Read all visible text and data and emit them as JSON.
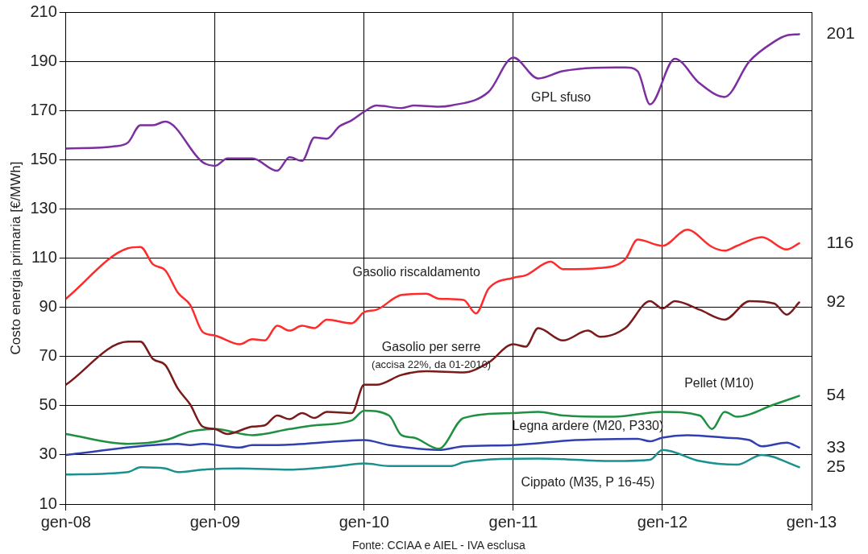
{
  "chart_data": {
    "type": "line",
    "ylabel": "Costo energia primaria [€/MWh]",
    "xlim": [
      "2008-01",
      "2013-01"
    ],
    "xticks": [
      {
        "value": "2008-01",
        "label": "gen-08"
      },
      {
        "value": "2009-01",
        "label": "gen-09"
      },
      {
        "value": "2010-01",
        "label": "gen-10"
      },
      {
        "value": "2011-01",
        "label": "gen-11"
      },
      {
        "value": "2012-01",
        "label": "gen-12"
      },
      {
        "value": "2013-01",
        "label": "gen-13"
      }
    ],
    "ylim": [
      10,
      210
    ],
    "yticks": [
      10,
      30,
      50,
      70,
      90,
      110,
      130,
      150,
      170,
      190,
      210
    ],
    "grid": true,
    "line_style": "solid",
    "marker": "none",
    "series": [
      {
        "name": "GPL sfuso",
        "color": "#7b2fa0",
        "x": [
          "2008-01",
          "2008-05",
          "2008-06",
          "2008-07",
          "2008-08",
          "2008-09",
          "2008-12",
          "2009-01",
          "2009-02",
          "2009-04",
          "2009-06",
          "2009-07",
          "2009-08",
          "2009-09",
          "2009-10",
          "2009-11",
          "2009-12",
          "2010-01",
          "2010-02",
          "2010-04",
          "2010-05",
          "2010-07",
          "2010-08",
          "2010-11",
          "2011-01",
          "2011-03",
          "2011-05",
          "2011-10",
          "2011-11",
          "2011-12",
          "2012-02",
          "2012-04",
          "2012-06",
          "2012-08",
          "2012-10",
          "2012-11",
          "2012-12"
        ],
        "values": [
          154.5,
          155.5,
          157,
          164,
          164,
          165.5,
          149,
          147.5,
          150.5,
          150.5,
          145.5,
          151,
          149.5,
          159,
          158.5,
          163.5,
          166,
          169.5,
          172,
          171,
          172,
          171.5,
          172,
          177.5,
          191.5,
          183,
          186,
          187.5,
          186,
          172.5,
          191,
          181,
          175.5,
          190,
          198,
          200.5,
          201
        ],
        "value_labels": [
          null,
          null,
          null,
          null,
          null,
          null,
          null,
          null,
          null,
          null,
          null,
          null,
          null,
          null,
          null,
          null,
          null,
          null,
          null,
          null,
          null,
          null,
          null,
          null,
          null,
          null,
          null,
          null,
          null,
          null,
          null,
          null,
          null,
          null,
          null,
          null,
          "201"
        ]
      },
      {
        "name": "Gasolio riscaldamento",
        "color": "#ff2a2a",
        "x": [
          "2008-01",
          "2008-06",
          "2008-07",
          "2008-08",
          "2008-09",
          "2008-10",
          "2008-11",
          "2008-12",
          "2009-01",
          "2009-03",
          "2009-04",
          "2009-05",
          "2009-06",
          "2009-07",
          "2009-08",
          "2009-09",
          "2009-10",
          "2009-12",
          "2010-01",
          "2010-02",
          "2010-04",
          "2010-06",
          "2010-07",
          "2010-09",
          "2010-10",
          "2010-11",
          "2011-01",
          "2011-02",
          "2011-04",
          "2011-05",
          "2011-08",
          "2011-10",
          "2011-11",
          "2012-01",
          "2012-03",
          "2012-05",
          "2012-06",
          "2012-07",
          "2012-09",
          "2012-11",
          "2012-12"
        ],
        "values": [
          93.5,
          114,
          114.5,
          107.5,
          105,
          96,
          91,
          80,
          78.5,
          75,
          77,
          76.5,
          82.5,
          80.5,
          82.5,
          81.5,
          85,
          83.5,
          88,
          89,
          95,
          95.5,
          93.5,
          93,
          87.5,
          97.5,
          102,
          103,
          108.5,
          105.5,
          106,
          109.5,
          117.5,
          115,
          121.5,
          114.5,
          113,
          115,
          118.5,
          113.5,
          116
        ],
        "value_labels": [
          null,
          null,
          null,
          null,
          null,
          null,
          null,
          null,
          null,
          null,
          null,
          null,
          null,
          null,
          null,
          null,
          null,
          null,
          null,
          null,
          null,
          null,
          null,
          null,
          null,
          null,
          null,
          null,
          null,
          null,
          null,
          null,
          null,
          null,
          null,
          null,
          null,
          null,
          null,
          null,
          "116"
        ]
      },
      {
        "name": "Gasolio per serre",
        "color": "#7a1a1a",
        "x": [
          "2008-01",
          "2008-06",
          "2008-07",
          "2008-08",
          "2008-09",
          "2008-10",
          "2008-11",
          "2008-12",
          "2009-01",
          "2009-02",
          "2009-04",
          "2009-05",
          "2009-06",
          "2009-07",
          "2009-08",
          "2009-09",
          "2009-10",
          "2009-12",
          "2010-01",
          "2010-02",
          "2010-04",
          "2010-06",
          "2010-09",
          "2010-11",
          "2011-01",
          "2011-02",
          "2011-03",
          "2011-05",
          "2011-07",
          "2011-08",
          "2011-10",
          "2011-12",
          "2012-01",
          "2012-02",
          "2012-04",
          "2012-06",
          "2012-08",
          "2012-10",
          "2012-11",
          "2012-12"
        ],
        "values": [
          58.5,
          76,
          76,
          69,
          66.5,
          57,
          50.5,
          41.5,
          40.5,
          38.5,
          41.5,
          42,
          46,
          44.5,
          47,
          45,
          47.5,
          47,
          58.5,
          58.5,
          62.5,
          64,
          63.5,
          67.5,
          75,
          74,
          81.5,
          76.5,
          80.5,
          78,
          81.5,
          92.5,
          89.5,
          92.5,
          89,
          85,
          92.5,
          91.5,
          87,
          92
        ],
        "value_labels": [
          null,
          null,
          null,
          null,
          null,
          null,
          null,
          null,
          null,
          null,
          null,
          null,
          null,
          null,
          null,
          null,
          null,
          null,
          null,
          null,
          null,
          null,
          null,
          null,
          null,
          null,
          null,
          null,
          null,
          null,
          null,
          null,
          null,
          null,
          null,
          null,
          null,
          null,
          null,
          "92"
        ]
      },
      {
        "name": "Pellet (M10)",
        "color": "#1e9040",
        "x": [
          "2008-01",
          "2008-06",
          "2008-09",
          "2008-11",
          "2009-01",
          "2009-04",
          "2009-07",
          "2009-09",
          "2009-12",
          "2010-01",
          "2010-03",
          "2010-04",
          "2010-05",
          "2010-07",
          "2010-09",
          "2011-01",
          "2011-03",
          "2011-05",
          "2011-09",
          "2012-01",
          "2012-04",
          "2012-05",
          "2012-06",
          "2012-07",
          "2012-10",
          "2012-12"
        ],
        "values": [
          38.5,
          34.5,
          36,
          39.5,
          40.5,
          38,
          40.5,
          42,
          44,
          48,
          46,
          38,
          37,
          32.5,
          45,
          47,
          47.5,
          46,
          45.5,
          47.5,
          46,
          40.5,
          47.5,
          45.5,
          50.5,
          54
        ],
        "value_labels": [
          null,
          null,
          null,
          null,
          null,
          null,
          null,
          null,
          null,
          null,
          null,
          null,
          null,
          null,
          null,
          null,
          null,
          null,
          null,
          null,
          null,
          null,
          null,
          null,
          null,
          "54"
        ]
      },
      {
        "name": "Legna ardere (M20, P330)",
        "color": "#3040b0",
        "x": [
          "2008-01",
          "2008-10",
          "2008-11",
          "2008-12",
          "2009-03",
          "2009-04",
          "2009-06",
          "2009-11",
          "2010-01",
          "2010-03",
          "2010-07",
          "2010-09",
          "2011-01",
          "2011-06",
          "2011-11",
          "2011-12",
          "2012-01",
          "2012-03",
          "2012-06",
          "2012-08",
          "2012-09",
          "2012-11",
          "2012-12"
        ],
        "values": [
          30,
          34.5,
          34,
          34.5,
          33,
          34,
          34,
          35.5,
          36,
          34,
          32,
          33.5,
          34,
          36,
          36.5,
          35.5,
          37,
          38,
          37,
          36,
          33.5,
          35,
          33
        ],
        "value_labels": [
          null,
          null,
          null,
          null,
          null,
          null,
          null,
          null,
          null,
          null,
          null,
          null,
          null,
          null,
          null,
          null,
          null,
          null,
          null,
          null,
          null,
          null,
          "33"
        ]
      },
      {
        "name": "Cippato (M35, P 16-45)",
        "color": "#1a9090",
        "x": [
          "2008-01",
          "2008-06",
          "2008-07",
          "2008-09",
          "2008-10",
          "2008-12",
          "2009-03",
          "2009-07",
          "2009-11",
          "2010-01",
          "2010-03",
          "2010-08",
          "2010-09",
          "2011-03",
          "2011-09",
          "2011-12",
          "2012-01",
          "2012-04",
          "2012-07",
          "2012-09",
          "2012-12"
        ],
        "values": [
          22,
          23,
          25,
          24.5,
          23,
          24,
          24.5,
          24,
          25.5,
          26.5,
          25.5,
          25.5,
          27,
          28.5,
          27.5,
          28,
          32,
          27.5,
          26,
          30,
          25
        ],
        "value_labels": [
          null,
          null,
          null,
          null,
          null,
          null,
          null,
          null,
          null,
          null,
          null,
          null,
          null,
          null,
          null,
          null,
          null,
          null,
          null,
          null,
          "25"
        ]
      }
    ],
    "annotations": [
      "(accisa 22%, da 01-2010)",
      "Fonte: CCIAA e AIEL - IVA esclusa"
    ]
  }
}
